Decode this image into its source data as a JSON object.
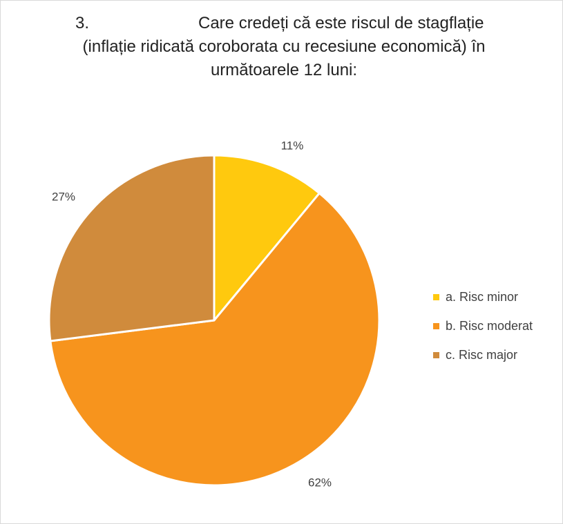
{
  "title": {
    "number": "3.",
    "line1": "Care credeți că este riscul de stagflație",
    "line2": "(inflație ridicată coroborata cu recesiune economică) în",
    "line3": "următoarele 12 luni:"
  },
  "chart_data": {
    "type": "pie",
    "categories": [
      "a. Risc minor",
      "b. Risc moderat",
      "c. Risc major"
    ],
    "values": [
      11,
      62,
      27
    ],
    "labels": [
      "11%",
      "62%",
      "27%"
    ],
    "colors": [
      "#FFC90E",
      "#F7941D",
      "#D08B3C"
    ],
    "legend_position": "right",
    "start_angle_deg": 0,
    "direction": "clockwise"
  }
}
